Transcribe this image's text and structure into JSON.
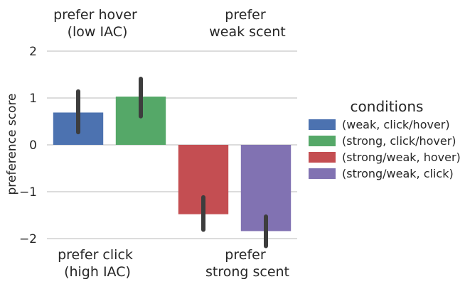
{
  "annotations": {
    "top_left": [
      "prefer hover",
      "(low IAC)"
    ],
    "top_right": [
      "prefer",
      "weak scent"
    ],
    "bottom_left": [
      "prefer click",
      "(high IAC)"
    ],
    "bottom_right": [
      "prefer",
      "strong scent"
    ]
  },
  "legend_title": "conditions",
  "chart_data": {
    "type": "bar",
    "title": "",
    "xlabel": "",
    "ylabel": "preference score",
    "ylim": [
      -2.05,
      2.1
    ],
    "yticks": [
      2,
      1,
      0,
      -1,
      -2
    ],
    "ytick_labels": [
      "2",
      "1",
      "0",
      "−1",
      "−2"
    ],
    "grid": "horizontal",
    "legend_placement": "right",
    "categories": [
      "(weak, click/hover)",
      "(strong, click/hover)",
      "(strong/weak, hover)",
      "(strong/weak, click)"
    ],
    "values": [
      0.69,
      1.03,
      -1.48,
      -1.84
    ],
    "error_bars": [
      [
        0.27,
        1.14
      ],
      [
        0.61,
        1.41
      ],
      [
        -1.81,
        -1.12
      ],
      [
        -2.16,
        -1.53
      ]
    ],
    "colors": [
      "#4c72b0",
      "#55a868",
      "#c44e52",
      "#8172b2"
    ]
  }
}
